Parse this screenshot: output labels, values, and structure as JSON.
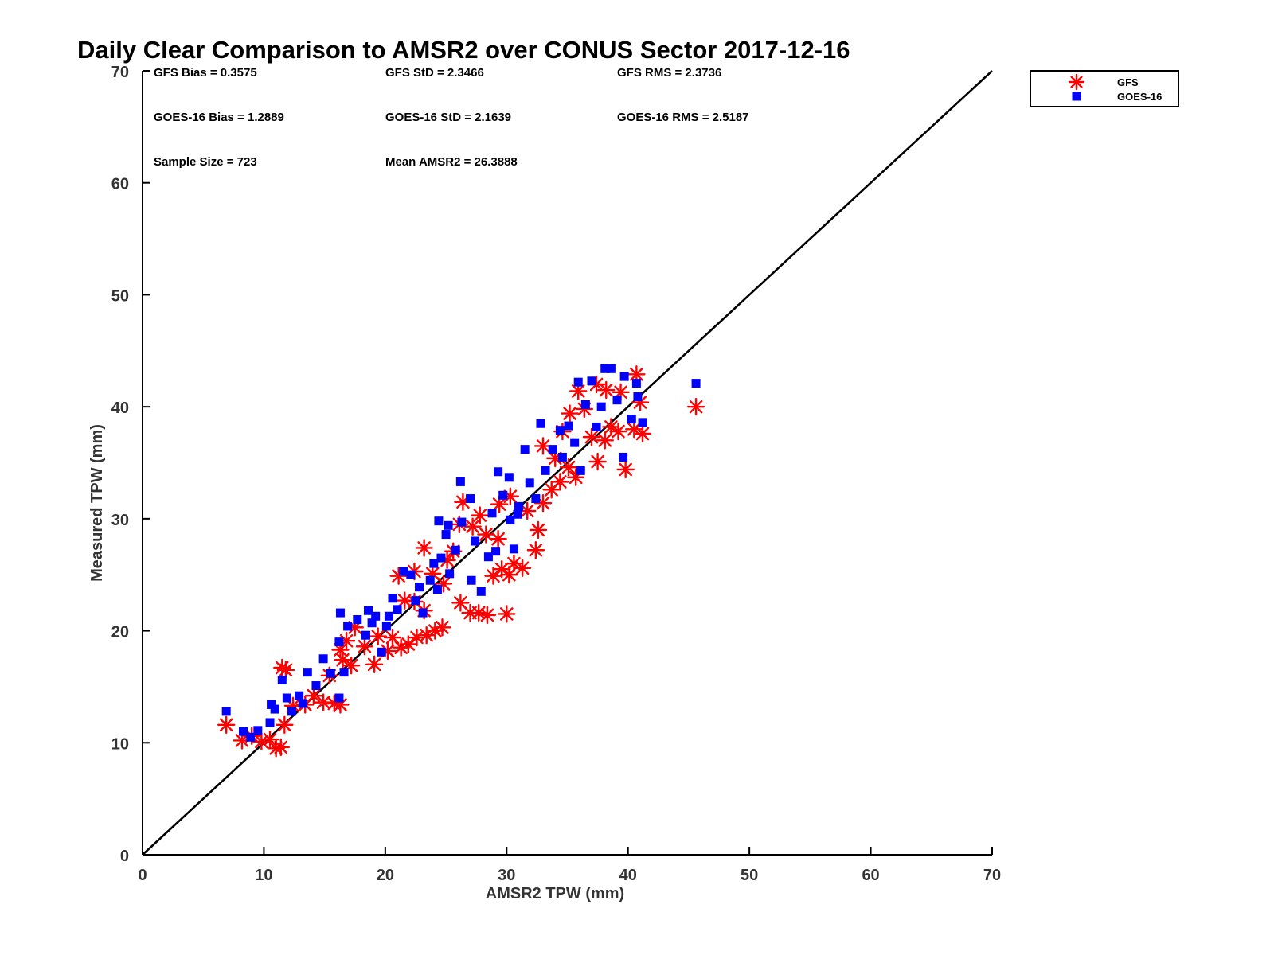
{
  "chart_data": {
    "type": "scatter",
    "title": "Daily Clear Comparison to AMSR2 over CONUS Sector 2017-12-16",
    "xlabel": "AMSR2 TPW (mm)",
    "ylabel": "Measured TPW (mm)",
    "xlim": [
      0,
      70
    ],
    "ylim": [
      0,
      70
    ],
    "xticks": [
      "0",
      "10",
      "20",
      "30",
      "40",
      "50",
      "60",
      "70"
    ],
    "yticks": [
      "0",
      "10",
      "20",
      "30",
      "40",
      "50",
      "60",
      "70"
    ],
    "legend_position": "outside-top-right",
    "reference_line": {
      "from": [
        0,
        0
      ],
      "to": [
        70,
        70
      ],
      "color": "#000000"
    },
    "stats": [
      {
        "label": "GFS Bias = 0.3575",
        "row": 0,
        "col": 0
      },
      {
        "label": "GFS StD = 2.3466",
        "row": 0,
        "col": 1
      },
      {
        "label": "GFS RMS = 2.3736",
        "row": 0,
        "col": 2
      },
      {
        "label": "GOES-16 Bias = 1.2889",
        "row": 1,
        "col": 0
      },
      {
        "label": "GOES-16 StD = 2.1639",
        "row": 1,
        "col": 1
      },
      {
        "label": "GOES-16 RMS = 2.5187",
        "row": 1,
        "col": 2
      },
      {
        "label": "Sample Size = 723",
        "row": 2,
        "col": 0
      },
      {
        "label": "Mean AMSR2 = 26.3888",
        "row": 2,
        "col": 1
      }
    ],
    "series": [
      {
        "name": "GFS",
        "marker": "asterisk",
        "color": "#ff0000",
        "points": [
          [
            6.9,
            11.6
          ],
          [
            8.2,
            10.2
          ],
          [
            9.0,
            10.6
          ],
          [
            9.8,
            10.1
          ],
          [
            10.5,
            10.3
          ],
          [
            11.0,
            9.5
          ],
          [
            11.4,
            9.6
          ],
          [
            11.5,
            16.7
          ],
          [
            11.8,
            16.5
          ],
          [
            11.7,
            11.6
          ],
          [
            12.4,
            13.3
          ],
          [
            13.4,
            13.4
          ],
          [
            14.1,
            14.2
          ],
          [
            14.9,
            13.6
          ],
          [
            15.8,
            13.5
          ],
          [
            16.3,
            13.4
          ],
          [
            15.4,
            16.0
          ],
          [
            16.5,
            17.4
          ],
          [
            17.2,
            16.9
          ],
          [
            16.3,
            18.3
          ],
          [
            16.8,
            19.1
          ],
          [
            17.5,
            20.3
          ],
          [
            18.3,
            18.6
          ],
          [
            19.1,
            17.0
          ],
          [
            19.4,
            19.5
          ],
          [
            20.2,
            18.2
          ],
          [
            20.6,
            19.4
          ],
          [
            21.3,
            18.5
          ],
          [
            21.9,
            18.8
          ],
          [
            22.6,
            19.4
          ],
          [
            23.4,
            19.6
          ],
          [
            24.1,
            20.0
          ],
          [
            24.7,
            20.3
          ],
          [
            23.2,
            21.8
          ],
          [
            22.4,
            22.6
          ],
          [
            21.6,
            22.7
          ],
          [
            21.1,
            24.9
          ],
          [
            22.4,
            25.3
          ],
          [
            23.2,
            27.4
          ],
          [
            23.9,
            25.1
          ],
          [
            24.8,
            24.2
          ],
          [
            25.1,
            26.3
          ],
          [
            25.6,
            27.1
          ],
          [
            26.2,
            22.5
          ],
          [
            27.0,
            21.6
          ],
          [
            27.7,
            21.6
          ],
          [
            28.4,
            21.4
          ],
          [
            30.0,
            21.5
          ],
          [
            28.9,
            24.9
          ],
          [
            29.6,
            25.5
          ],
          [
            30.2,
            25.0
          ],
          [
            30.6,
            26.0
          ],
          [
            31.3,
            25.6
          ],
          [
            32.4,
            27.2
          ],
          [
            32.6,
            29.0
          ],
          [
            29.3,
            28.2
          ],
          [
            28.3,
            28.6
          ],
          [
            27.2,
            29.3
          ],
          [
            26.4,
            31.5
          ],
          [
            26.1,
            29.5
          ],
          [
            27.8,
            30.3
          ],
          [
            29.4,
            31.3
          ],
          [
            30.3,
            32.0
          ],
          [
            31.7,
            30.7
          ],
          [
            33.0,
            31.4
          ],
          [
            33.7,
            32.6
          ],
          [
            34.4,
            33.3
          ],
          [
            35.1,
            34.6
          ],
          [
            35.7,
            33.7
          ],
          [
            34.0,
            35.4
          ],
          [
            33.0,
            36.5
          ],
          [
            34.6,
            37.8
          ],
          [
            35.2,
            39.4
          ],
          [
            35.9,
            41.4
          ],
          [
            36.4,
            39.8
          ],
          [
            37.0,
            37.3
          ],
          [
            37.5,
            35.1
          ],
          [
            38.1,
            37.0
          ],
          [
            38.6,
            38.2
          ],
          [
            39.2,
            37.8
          ],
          [
            39.8,
            34.4
          ],
          [
            40.5,
            38.0
          ],
          [
            41.0,
            40.4
          ],
          [
            41.2,
            37.6
          ],
          [
            40.7,
            42.9
          ],
          [
            39.4,
            41.3
          ],
          [
            38.2,
            41.5
          ],
          [
            37.4,
            42.0
          ],
          [
            45.6,
            40.0
          ]
        ]
      },
      {
        "name": "GOES-16",
        "marker": "square",
        "color": "#0000ff",
        "points": [
          [
            6.9,
            12.8
          ],
          [
            8.3,
            11.0
          ],
          [
            8.9,
            10.5
          ],
          [
            9.5,
            11.1
          ],
          [
            10.5,
            11.8
          ],
          [
            10.9,
            13.0
          ],
          [
            11.5,
            15.6
          ],
          [
            11.9,
            14.0
          ],
          [
            12.3,
            12.8
          ],
          [
            12.9,
            14.2
          ],
          [
            13.6,
            16.3
          ],
          [
            14.3,
            15.1
          ],
          [
            14.9,
            17.5
          ],
          [
            15.5,
            16.2
          ],
          [
            16.2,
            14.0
          ],
          [
            16.6,
            16.3
          ],
          [
            16.2,
            19.0
          ],
          [
            16.3,
            21.6
          ],
          [
            16.9,
            20.4
          ],
          [
            17.7,
            21.0
          ],
          [
            18.4,
            19.6
          ],
          [
            18.6,
            21.8
          ],
          [
            19.2,
            21.3
          ],
          [
            19.7,
            18.1
          ],
          [
            20.1,
            20.4
          ],
          [
            20.6,
            22.9
          ],
          [
            21.0,
            21.9
          ],
          [
            21.5,
            25.3
          ],
          [
            22.1,
            25.0
          ],
          [
            22.5,
            22.7
          ],
          [
            23.1,
            21.6
          ],
          [
            23.7,
            24.5
          ],
          [
            24.3,
            23.7
          ],
          [
            24.6,
            26.5
          ],
          [
            25.0,
            28.6
          ],
          [
            25.3,
            25.1
          ],
          [
            25.8,
            27.2
          ],
          [
            25.2,
            29.4
          ],
          [
            24.4,
            29.8
          ],
          [
            26.3,
            29.7
          ],
          [
            26.2,
            33.3
          ],
          [
            27.0,
            31.8
          ],
          [
            27.4,
            28.0
          ],
          [
            27.1,
            24.5
          ],
          [
            27.9,
            23.5
          ],
          [
            28.5,
            26.6
          ],
          [
            28.8,
            30.5
          ],
          [
            29.3,
            34.2
          ],
          [
            29.7,
            32.1
          ],
          [
            30.2,
            33.7
          ],
          [
            30.3,
            29.9
          ],
          [
            30.6,
            27.3
          ],
          [
            31.0,
            31.1
          ],
          [
            31.5,
            36.2
          ],
          [
            31.9,
            33.2
          ],
          [
            32.4,
            31.8
          ],
          [
            32.8,
            38.5
          ],
          [
            33.2,
            34.3
          ],
          [
            33.8,
            36.2
          ],
          [
            34.4,
            37.9
          ],
          [
            34.6,
            35.5
          ],
          [
            35.1,
            38.3
          ],
          [
            35.6,
            36.8
          ],
          [
            35.9,
            42.2
          ],
          [
            36.5,
            40.2
          ],
          [
            37.0,
            42.3
          ],
          [
            37.4,
            38.2
          ],
          [
            37.8,
            40.0
          ],
          [
            38.1,
            43.4
          ],
          [
            38.6,
            43.4
          ],
          [
            39.1,
            40.6
          ],
          [
            39.7,
            42.7
          ],
          [
            39.6,
            35.5
          ],
          [
            40.3,
            38.9
          ],
          [
            40.7,
            42.1
          ],
          [
            41.2,
            38.6
          ],
          [
            40.8,
            40.9
          ],
          [
            36.1,
            34.3
          ],
          [
            45.6,
            42.1
          ],
          [
            30.9,
            30.4
          ],
          [
            29.1,
            27.1
          ],
          [
            24.0,
            26.0
          ],
          [
            22.8,
            23.9
          ],
          [
            20.3,
            21.3
          ],
          [
            18.9,
            20.7
          ],
          [
            13.2,
            13.5
          ],
          [
            10.6,
            13.4
          ]
        ]
      }
    ]
  }
}
